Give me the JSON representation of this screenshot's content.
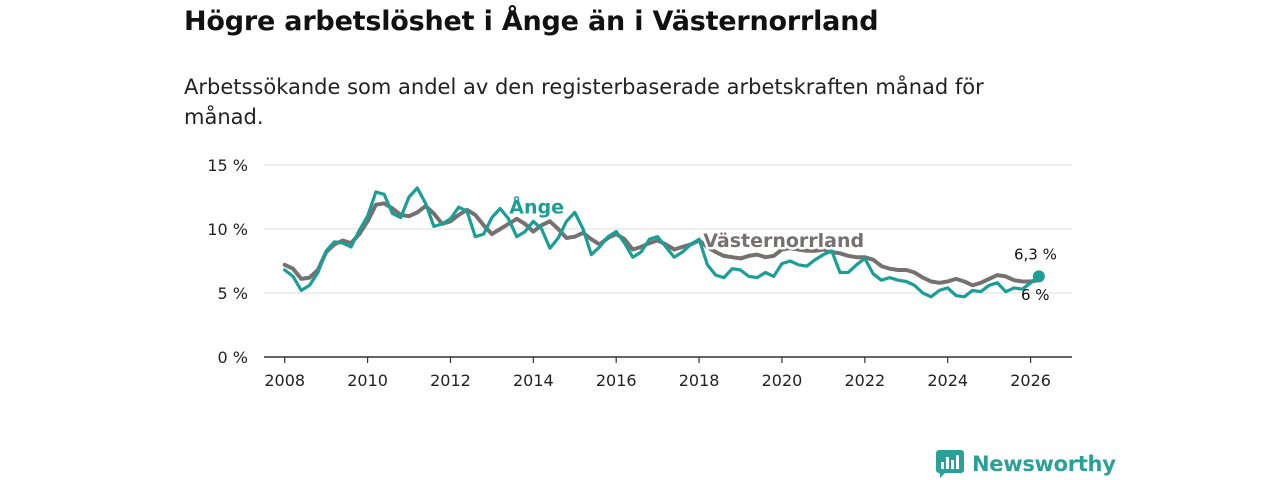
{
  "title": "Högre arbetslöshet i Ånge än i Västernorrland",
  "subtitle": "Arbetssökande som andel av den registerbaserade arbetskraften månad för månad.",
  "brand": {
    "name": "Newsworthy",
    "icon": "newsworthy-logo-icon"
  },
  "colors": {
    "ange": "#1a9e95",
    "vasternorrland": "#767171",
    "grid": "#dddddd",
    "axis": "#333333"
  },
  "chart_data": {
    "type": "line",
    "title": "Högre arbetslöshet i Ånge än i Västernorrland",
    "xlabel": "",
    "ylabel": "",
    "xlim": [
      2007.5,
      2027.0
    ],
    "ylim": [
      0,
      15
    ],
    "yticks": [
      0,
      5,
      10,
      15
    ],
    "ytick_labels": [
      "0 %",
      "5 %",
      "10 %",
      "15 %"
    ],
    "xticks": [
      2008,
      2010,
      2012,
      2014,
      2016,
      2018,
      2020,
      2022,
      2024,
      2026
    ],
    "xtick_labels": [
      "2008",
      "2010",
      "2012",
      "2014",
      "2016",
      "2018",
      "2020",
      "2022",
      "2024",
      "2026"
    ],
    "grid": true,
    "series": [
      {
        "name": "Västernorrland",
        "label": "Västernorrland",
        "end_label": "6 %",
        "points": [
          [
            2008.0,
            7.2
          ],
          [
            2008.2,
            6.9
          ],
          [
            2008.4,
            6.1
          ],
          [
            2008.6,
            6.2
          ],
          [
            2008.8,
            6.8
          ],
          [
            2009.0,
            8.2
          ],
          [
            2009.2,
            8.8
          ],
          [
            2009.4,
            9.1
          ],
          [
            2009.6,
            8.9
          ],
          [
            2009.8,
            9.6
          ],
          [
            2010.0,
            10.6
          ],
          [
            2010.2,
            11.9
          ],
          [
            2010.4,
            12.0
          ],
          [
            2010.6,
            11.6
          ],
          [
            2010.8,
            11.1
          ],
          [
            2011.0,
            11.0
          ],
          [
            2011.2,
            11.3
          ],
          [
            2011.4,
            11.8
          ],
          [
            2011.6,
            11.2
          ],
          [
            2011.8,
            10.4
          ],
          [
            2012.0,
            10.6
          ],
          [
            2012.2,
            11.1
          ],
          [
            2012.4,
            11.5
          ],
          [
            2012.6,
            11.1
          ],
          [
            2012.8,
            10.3
          ],
          [
            2013.0,
            9.6
          ],
          [
            2013.2,
            10.0
          ],
          [
            2013.4,
            10.4
          ],
          [
            2013.6,
            10.8
          ],
          [
            2013.8,
            10.4
          ],
          [
            2014.0,
            9.8
          ],
          [
            2014.2,
            10.3
          ],
          [
            2014.4,
            10.6
          ],
          [
            2014.6,
            10.0
          ],
          [
            2014.8,
            9.3
          ],
          [
            2015.0,
            9.4
          ],
          [
            2015.2,
            9.7
          ],
          [
            2015.4,
            9.2
          ],
          [
            2015.6,
            8.8
          ],
          [
            2015.8,
            9.3
          ],
          [
            2016.0,
            9.6
          ],
          [
            2016.2,
            9.2
          ],
          [
            2016.4,
            8.4
          ],
          [
            2016.6,
            8.6
          ],
          [
            2016.8,
            8.9
          ],
          [
            2017.0,
            9.1
          ],
          [
            2017.2,
            8.8
          ],
          [
            2017.4,
            8.4
          ],
          [
            2017.6,
            8.6
          ],
          [
            2017.8,
            8.8
          ],
          [
            2018.0,
            9.1
          ],
          [
            2018.2,
            8.6
          ],
          [
            2018.4,
            8.2
          ],
          [
            2018.6,
            7.9
          ],
          [
            2018.8,
            7.8
          ],
          [
            2019.0,
            7.7
          ],
          [
            2019.2,
            7.9
          ],
          [
            2019.4,
            8.0
          ],
          [
            2019.6,
            7.8
          ],
          [
            2019.8,
            7.9
          ],
          [
            2020.0,
            8.4
          ],
          [
            2020.2,
            8.5
          ],
          [
            2020.4,
            8.4
          ],
          [
            2020.6,
            8.3
          ],
          [
            2020.8,
            8.3
          ],
          [
            2021.0,
            8.4
          ],
          [
            2021.2,
            8.2
          ],
          [
            2021.4,
            8.1
          ],
          [
            2021.6,
            7.9
          ],
          [
            2021.8,
            7.8
          ],
          [
            2022.0,
            7.8
          ],
          [
            2022.2,
            7.6
          ],
          [
            2022.4,
            7.1
          ],
          [
            2022.6,
            6.9
          ],
          [
            2022.8,
            6.8
          ],
          [
            2023.0,
            6.8
          ],
          [
            2023.2,
            6.6
          ],
          [
            2023.4,
            6.2
          ],
          [
            2023.6,
            5.9
          ],
          [
            2023.8,
            5.8
          ],
          [
            2024.0,
            5.9
          ],
          [
            2024.2,
            6.1
          ],
          [
            2024.4,
            5.9
          ],
          [
            2024.6,
            5.6
          ],
          [
            2024.8,
            5.8
          ],
          [
            2025.0,
            6.1
          ],
          [
            2025.2,
            6.4
          ],
          [
            2025.4,
            6.3
          ],
          [
            2025.6,
            6.0
          ],
          [
            2025.8,
            5.9
          ],
          [
            2026.0,
            5.9
          ],
          [
            2026.2,
            6.0
          ]
        ]
      },
      {
        "name": "Ånge",
        "label": "Ånge",
        "end_label": "6,3 %",
        "points": [
          [
            2008.0,
            6.8
          ],
          [
            2008.2,
            6.3
          ],
          [
            2008.4,
            5.2
          ],
          [
            2008.6,
            5.6
          ],
          [
            2008.8,
            6.6
          ],
          [
            2009.0,
            8.3
          ],
          [
            2009.2,
            9.0
          ],
          [
            2009.4,
            8.9
          ],
          [
            2009.6,
            8.6
          ],
          [
            2009.8,
            9.9
          ],
          [
            2010.0,
            11.0
          ],
          [
            2010.2,
            12.9
          ],
          [
            2010.4,
            12.7
          ],
          [
            2010.6,
            11.2
          ],
          [
            2010.8,
            10.9
          ],
          [
            2011.0,
            12.5
          ],
          [
            2011.2,
            13.2
          ],
          [
            2011.4,
            12.0
          ],
          [
            2011.6,
            10.2
          ],
          [
            2011.8,
            10.4
          ],
          [
            2012.0,
            10.8
          ],
          [
            2012.2,
            11.7
          ],
          [
            2012.4,
            11.4
          ],
          [
            2012.6,
            9.4
          ],
          [
            2012.8,
            9.6
          ],
          [
            2013.0,
            10.9
          ],
          [
            2013.2,
            11.6
          ],
          [
            2013.4,
            10.8
          ],
          [
            2013.6,
            9.4
          ],
          [
            2013.8,
            9.8
          ],
          [
            2014.0,
            10.6
          ],
          [
            2014.2,
            10.0
          ],
          [
            2014.4,
            8.5
          ],
          [
            2014.6,
            9.3
          ],
          [
            2014.8,
            10.6
          ],
          [
            2015.0,
            11.3
          ],
          [
            2015.2,
            10.0
          ],
          [
            2015.4,
            8.0
          ],
          [
            2015.6,
            8.6
          ],
          [
            2015.8,
            9.4
          ],
          [
            2016.0,
            9.8
          ],
          [
            2016.2,
            8.9
          ],
          [
            2016.4,
            7.8
          ],
          [
            2016.6,
            8.2
          ],
          [
            2016.8,
            9.2
          ],
          [
            2017.0,
            9.4
          ],
          [
            2017.2,
            8.6
          ],
          [
            2017.4,
            7.8
          ],
          [
            2017.6,
            8.2
          ],
          [
            2017.8,
            8.8
          ],
          [
            2018.0,
            9.2
          ],
          [
            2018.2,
            7.2
          ],
          [
            2018.4,
            6.4
          ],
          [
            2018.6,
            6.2
          ],
          [
            2018.8,
            6.9
          ],
          [
            2019.0,
            6.8
          ],
          [
            2019.2,
            6.3
          ],
          [
            2019.4,
            6.2
          ],
          [
            2019.6,
            6.6
          ],
          [
            2019.8,
            6.3
          ],
          [
            2020.0,
            7.3
          ],
          [
            2020.2,
            7.5
          ],
          [
            2020.4,
            7.2
          ],
          [
            2020.6,
            7.1
          ],
          [
            2020.8,
            7.6
          ],
          [
            2021.0,
            8.0
          ],
          [
            2021.2,
            8.3
          ],
          [
            2021.4,
            6.6
          ],
          [
            2021.6,
            6.6
          ],
          [
            2021.8,
            7.2
          ],
          [
            2022.0,
            7.7
          ],
          [
            2022.2,
            6.5
          ],
          [
            2022.4,
            6.0
          ],
          [
            2022.6,
            6.2
          ],
          [
            2022.8,
            6.0
          ],
          [
            2023.0,
            5.9
          ],
          [
            2023.2,
            5.6
          ],
          [
            2023.4,
            5.0
          ],
          [
            2023.6,
            4.7
          ],
          [
            2023.8,
            5.2
          ],
          [
            2024.0,
            5.4
          ],
          [
            2024.2,
            4.8
          ],
          [
            2024.4,
            4.7
          ],
          [
            2024.6,
            5.2
          ],
          [
            2024.8,
            5.1
          ],
          [
            2025.0,
            5.6
          ],
          [
            2025.2,
            5.8
          ],
          [
            2025.4,
            5.1
          ],
          [
            2025.6,
            5.4
          ],
          [
            2025.8,
            5.3
          ],
          [
            2026.0,
            5.8
          ],
          [
            2026.2,
            6.3
          ]
        ]
      }
    ]
  }
}
